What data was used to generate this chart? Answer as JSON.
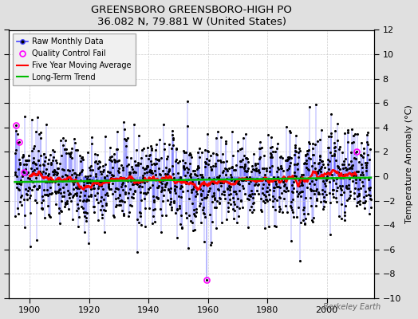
{
  "title": "GREENSBORO GREENSBORO-HIGH PO",
  "subtitle": "36.082 N, 79.881 W (United States)",
  "ylabel": "Temperature Anomaly (°C)",
  "watermark": "Berkeley Earth",
  "xlim": [
    1893,
    2016
  ],
  "ylim": [
    -10,
    12
  ],
  "yticks": [
    -10,
    -8,
    -6,
    -4,
    -2,
    0,
    2,
    4,
    6,
    8,
    10,
    12
  ],
  "xticks": [
    1900,
    1920,
    1940,
    1960,
    1980,
    2000
  ],
  "background_color": "#e0e0e0",
  "plot_bg_color": "#ffffff",
  "line_color": "#4444ff",
  "marker_color": "#000000",
  "ma_color": "#ff0000",
  "trend_color": "#00bb00",
  "qc_fail_color": "#ff00ff",
  "qc_fails": [
    {
      "year": 1895.5,
      "value": 4.2
    },
    {
      "year": 1896.5,
      "value": 2.8
    },
    {
      "year": 1898.0,
      "value": 0.3
    },
    {
      "year": 1959.5,
      "value": -8.5
    },
    {
      "year": 2010.0,
      "value": 2.0
    }
  ],
  "start_year": 1895,
  "end_year": 2014,
  "seed": 17
}
